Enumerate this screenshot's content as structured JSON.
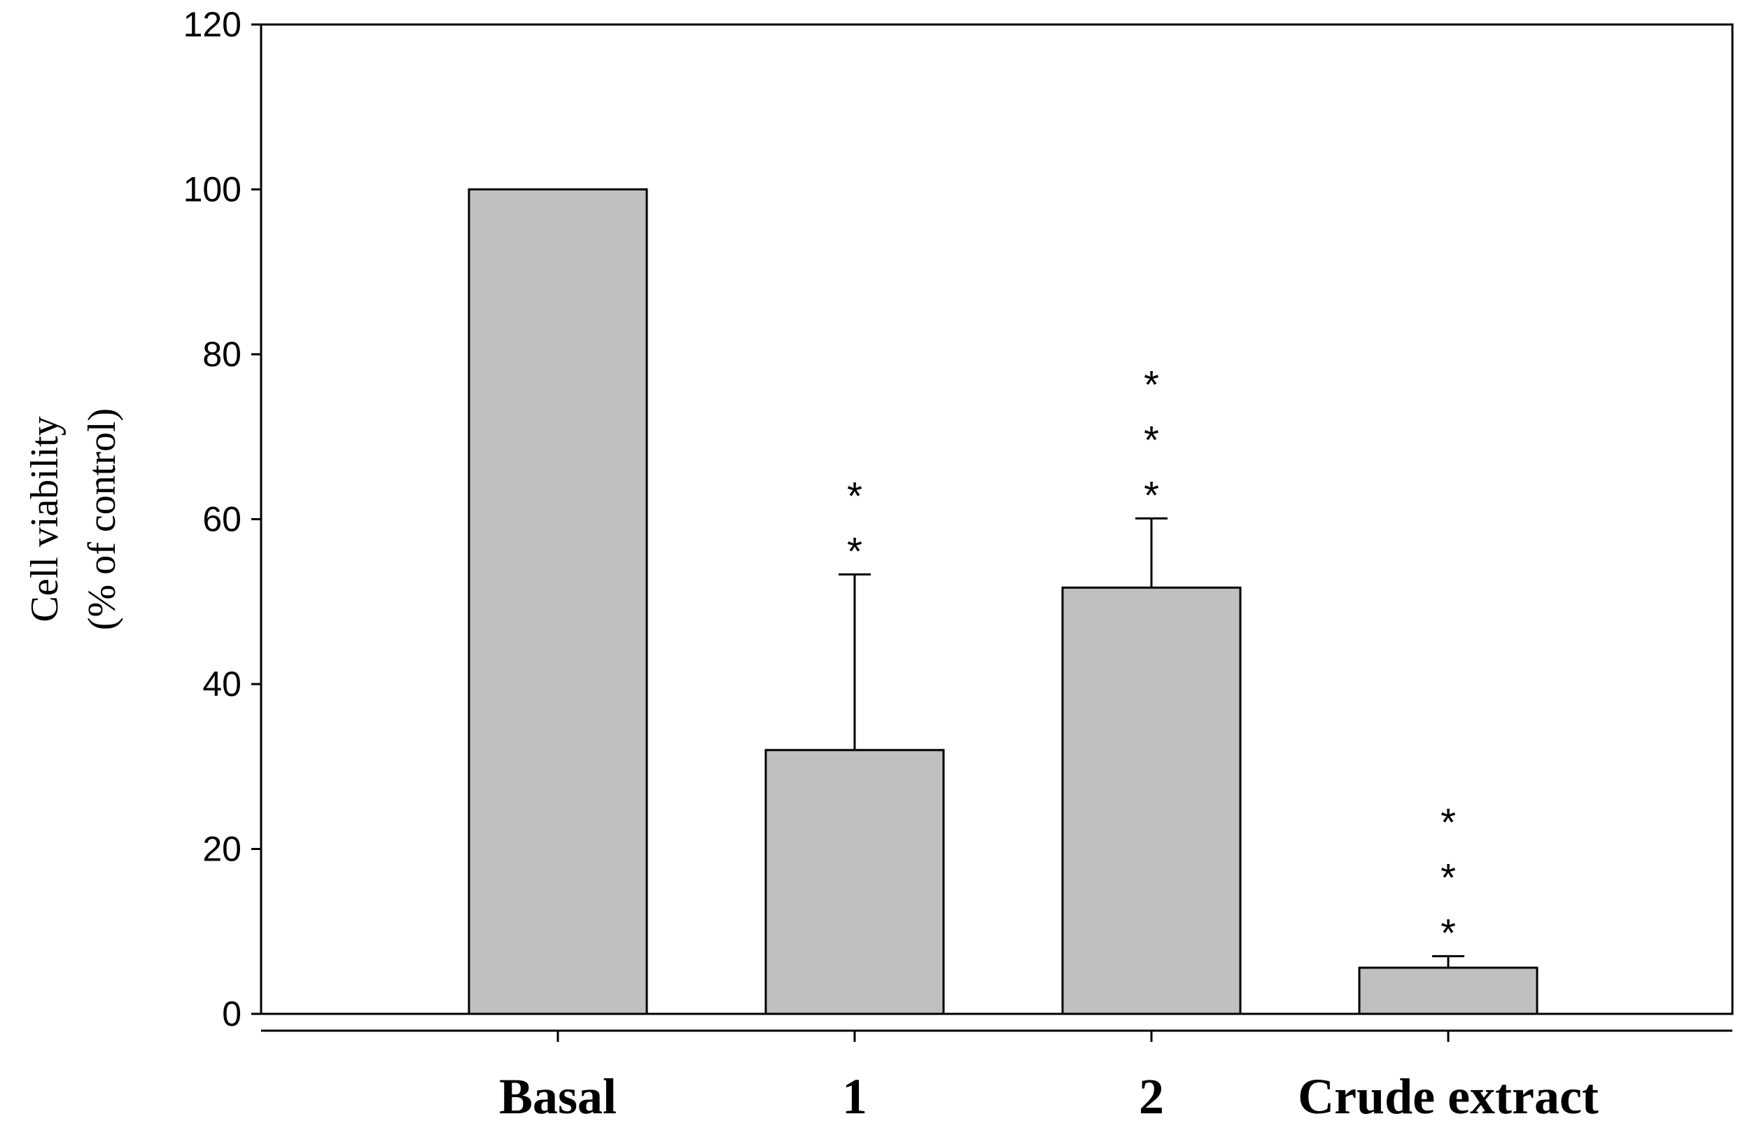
{
  "chart_data": {
    "type": "bar",
    "title": "",
    "xlabel": "",
    "ylabel": "Cell viability (% of control)",
    "ylabel_lines": [
      "Cell viability",
      "(% of control)"
    ],
    "categories": [
      "Basal",
      "1",
      "2",
      "Crude extract"
    ],
    "values": [
      100,
      32,
      51.7,
      5.6
    ],
    "error_bars": [
      null,
      21.3,
      8.4,
      1.4
    ],
    "significance": [
      "",
      "**",
      "***",
      "***"
    ],
    "ylim": [
      0,
      120
    ],
    "yticks": [
      0,
      20,
      40,
      60,
      80,
      100,
      120
    ],
    "grid": false,
    "legend": "none",
    "colors": {
      "bar_fill": "#c0c0c0",
      "bar_stroke": "#000000",
      "axis": "#000000"
    }
  }
}
